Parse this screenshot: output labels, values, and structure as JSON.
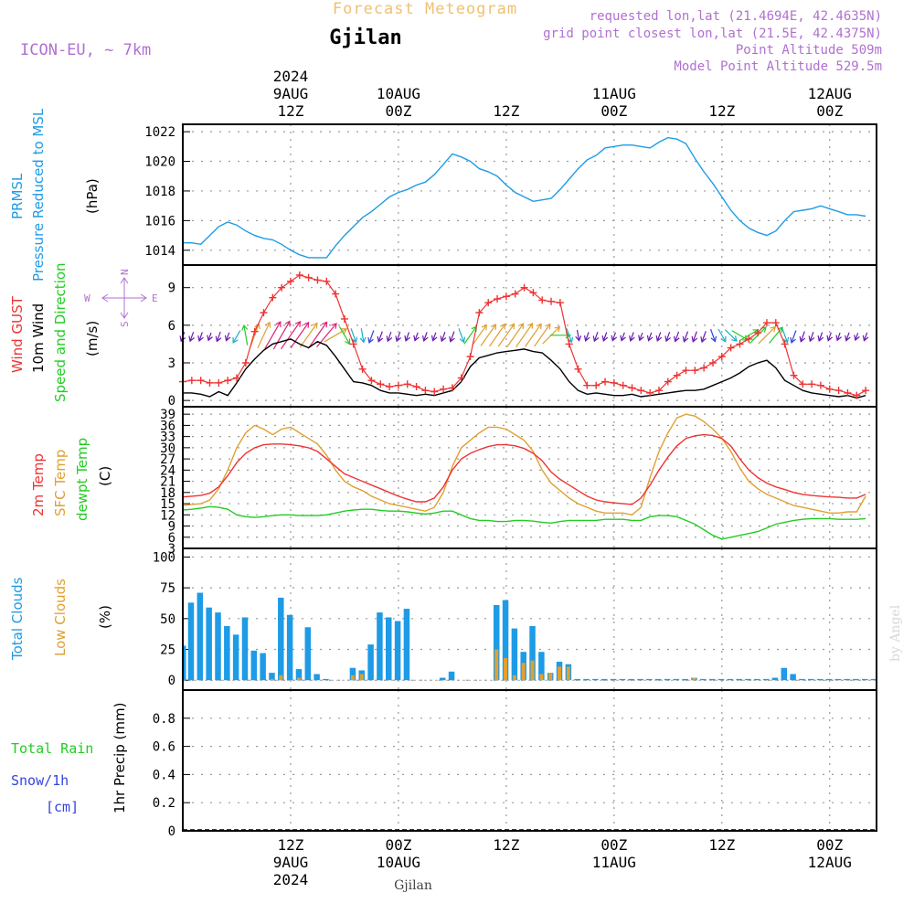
{
  "header": {
    "title": "Forecast Meteogram",
    "location": "Gjilan",
    "model": "ICON-EU, ~ 7km",
    "requested": "requested lon,lat (21.4694E, 42.4635N)",
    "grid_point": "grid point closest lon,lat (21.5E, 42.4375N)",
    "point_altitude": "Point Altitude 509m",
    "model_altitude": "Model Point Altitude 529.5m"
  },
  "top_axis": [
    {
      "h": 12,
      "lines": [
        "2024",
        "9AUG",
        "12Z"
      ]
    },
    {
      "h": 24,
      "lines": [
        "10AUG",
        "00Z"
      ]
    },
    {
      "h": 36,
      "lines": [
        "12Z"
      ]
    },
    {
      "h": 48,
      "lines": [
        "11AUG",
        "00Z"
      ]
    },
    {
      "h": 60,
      "lines": [
        "12Z"
      ]
    },
    {
      "h": 72,
      "lines": [
        "12AUG",
        "00Z"
      ]
    }
  ],
  "bottom_axis": [
    {
      "h": 12,
      "lines": [
        "12Z",
        "9AUG",
        "2024"
      ]
    },
    {
      "h": 24,
      "lines": [
        "00Z",
        "10AUG"
      ]
    },
    {
      "h": 36,
      "lines": [
        "12Z"
      ]
    },
    {
      "h": 48,
      "lines": [
        "00Z",
        "11AUG"
      ]
    },
    {
      "h": 60,
      "lines": [
        "12Z"
      ]
    },
    {
      "h": 72,
      "lines": [
        "00Z",
        "12AUG"
      ]
    }
  ],
  "footer_location": "Gjilan",
  "watermark": "by Angel",
  "labels": {
    "pressure_a": "PRMSL",
    "pressure_b": "Pressure Reduced to MSL",
    "pressure_unit": "(hPa)",
    "wind_gust": "Wind GUST",
    "wind_10m": "10m Wind",
    "wind_speed_dir": "Speed and Direction",
    "wind_unit": "(m/s)",
    "compass_n": "N",
    "compass_s": "S",
    "compass_w": "W",
    "compass_e": "E",
    "temp_2m": "2m Temp",
    "temp_sfc": "SFC Temp",
    "temp_dew": "dewpt Temp",
    "temp_unit": "(C)",
    "cloud_total": "Total Clouds",
    "cloud_low": "Low Clouds",
    "cloud_unit": "(%)",
    "rain_total": "Total  Rain",
    "rain_snow": "Snow/1h",
    "rain_cm": "[cm]",
    "rain_unit": "1hr Precip (mm)"
  },
  "colors": {
    "pressure": "#1e9be6",
    "gust": "#ee3333",
    "wind": "#000000",
    "t2m": "#ee3333",
    "sfc": "#e0a030",
    "dew": "#22cc22",
    "total_cloud": "#1e9be6",
    "low_cloud": "#e0a030",
    "rain": "#22cc22",
    "snow": "#3344dd",
    "header": "#b070d0",
    "title": "#f0c070"
  },
  "chart_data": [
    {
      "type": "line",
      "name": "pressure",
      "x_hours_from": "9AUG 00Z",
      "x": [
        0,
        1,
        2,
        3,
        4,
        5,
        6,
        7,
        8,
        9,
        10,
        11,
        12,
        13,
        14,
        15,
        16,
        17,
        18,
        19,
        20,
        21,
        22,
        23,
        24,
        25,
        26,
        27,
        28,
        29,
        30,
        31,
        32,
        33,
        34,
        35,
        36,
        37,
        38,
        39,
        40,
        41,
        42,
        43,
        44,
        45,
        46,
        47,
        48,
        49,
        50,
        51,
        52,
        53,
        54,
        55,
        56,
        57,
        58,
        59,
        60,
        61,
        62,
        63,
        64,
        65,
        66,
        67,
        68,
        69,
        70,
        71,
        72,
        73,
        74,
        75,
        76
      ],
      "values": [
        1014.5,
        1014.5,
        1014.4,
        1015.0,
        1015.6,
        1015.9,
        1015.7,
        1015.3,
        1015.0,
        1014.8,
        1014.7,
        1014.4,
        1014.0,
        1013.7,
        1013.5,
        1013.5,
        1013.5,
        1014.3,
        1015.0,
        1015.6,
        1016.2,
        1016.6,
        1017.1,
        1017.6,
        1017.9,
        1018.1,
        1018.4,
        1018.6,
        1019.1,
        1019.8,
        1020.5,
        1020.3,
        1020.0,
        1019.5,
        1019.3,
        1019.0,
        1018.4,
        1017.9,
        1017.6,
        1017.3,
        1017.4,
        1017.5,
        1018.1,
        1018.8,
        1019.5,
        1020.1,
        1020.4,
        1020.9,
        1021.0,
        1021.1,
        1021.1,
        1021.0,
        1020.9,
        1021.3,
        1021.6,
        1021.5,
        1021.2,
        1020.2,
        1019.3,
        1018.5,
        1017.6,
        1016.7,
        1016.0,
        1015.5,
        1015.2,
        1015.0,
        1015.3,
        1016.0,
        1016.6,
        1016.7,
        1016.8,
        1017.0,
        1016.8,
        1016.6,
        1016.4,
        1016.4,
        1016.3
      ],
      "ylim": [
        1013,
        1022.5
      ],
      "yticks": [
        1014,
        1016,
        1018,
        1020,
        1022
      ]
    },
    {
      "type": "line",
      "name": "wind",
      "x": [
        0,
        1,
        2,
        3,
        4,
        5,
        6,
        7,
        8,
        9,
        10,
        11,
        12,
        13,
        14,
        15,
        16,
        17,
        18,
        19,
        20,
        21,
        22,
        23,
        24,
        25,
        26,
        27,
        28,
        29,
        30,
        31,
        32,
        33,
        34,
        35,
        36,
        37,
        38,
        39,
        40,
        41,
        42,
        43,
        44,
        45,
        46,
        47,
        48,
        49,
        50,
        51,
        52,
        53,
        54,
        55,
        56,
        57,
        58,
        59,
        60,
        61,
        62,
        63,
        64,
        65,
        66,
        67,
        68,
        69,
        70,
        71,
        72,
        73,
        74,
        75,
        76
      ],
      "gust": [
        1.5,
        1.6,
        1.6,
        1.4,
        1.4,
        1.6,
        1.8,
        3.0,
        5.5,
        7.0,
        8.2,
        9.0,
        9.5,
        10.0,
        9.8,
        9.6,
        9.5,
        8.5,
        6.5,
        4.5,
        2.5,
        1.6,
        1.3,
        1.1,
        1.2,
        1.3,
        1.1,
        0.8,
        0.7,
        0.9,
        1.0,
        1.8,
        3.5,
        7.0,
        7.8,
        8.1,
        8.3,
        8.5,
        9.0,
        8.6,
        8.0,
        7.9,
        7.8,
        4.5,
        2.5,
        1.2,
        1.2,
        1.5,
        1.4,
        1.2,
        1.0,
        0.8,
        0.6,
        0.8,
        1.5,
        2.0,
        2.4,
        2.4,
        2.6,
        3.0,
        3.5,
        4.2,
        4.5,
        4.9,
        5.4,
        6.2,
        6.2,
        4.5,
        2.0,
        1.3,
        1.3,
        1.2,
        0.9,
        0.8,
        0.6,
        0.4,
        0.8
      ],
      "speed": [
        0.6,
        0.6,
        0.5,
        0.3,
        0.7,
        0.4,
        1.4,
        2.5,
        3.3,
        4.0,
        4.5,
        4.7,
        4.9,
        4.5,
        4.2,
        4.7,
        4.4,
        3.5,
        2.5,
        1.5,
        1.4,
        1.2,
        0.8,
        0.6,
        0.6,
        0.5,
        0.4,
        0.5,
        0.4,
        0.6,
        0.8,
        1.5,
        2.7,
        3.4,
        3.6,
        3.8,
        3.9,
        4.0,
        4.1,
        3.9,
        3.8,
        3.2,
        2.5,
        1.5,
        0.8,
        0.5,
        0.6,
        0.5,
        0.4,
        0.4,
        0.5,
        0.3,
        0.4,
        0.5,
        0.6,
        0.7,
        0.8,
        0.8,
        0.9,
        1.2,
        1.5,
        1.8,
        2.2,
        2.7,
        3.0,
        3.2,
        2.6,
        1.6,
        1.2,
        0.8,
        0.6,
        0.5,
        0.4,
        0.3,
        0.4,
        0.2,
        0.4
      ],
      "direction_deg": [
        20,
        20,
        20,
        20,
        20,
        20,
        30,
        170,
        200,
        205,
        210,
        210,
        215,
        215,
        215,
        215,
        220,
        240,
        330,
        340,
        350,
        20,
        20,
        20,
        20,
        20,
        20,
        20,
        20,
        20,
        20,
        340,
        215,
        215,
        215,
        215,
        215,
        215,
        215,
        215,
        215,
        225,
        270,
        340,
        350,
        20,
        20,
        20,
        20,
        20,
        20,
        20,
        20,
        20,
        20,
        20,
        20,
        20,
        20,
        340,
        330,
        315,
        300,
        240,
        225,
        225,
        220,
        340,
        20,
        20,
        20,
        20,
        20,
        20,
        20,
        20,
        20
      ],
      "ylim": [
        -0.5,
        10.8
      ],
      "yticks": [
        0,
        3,
        6,
        9
      ]
    },
    {
      "type": "line",
      "name": "temperature",
      "x": [
        0,
        1,
        2,
        3,
        4,
        5,
        6,
        7,
        8,
        9,
        10,
        11,
        12,
        13,
        14,
        15,
        16,
        17,
        18,
        19,
        20,
        21,
        22,
        23,
        24,
        25,
        26,
        27,
        28,
        29,
        30,
        31,
        32,
        33,
        34,
        35,
        36,
        37,
        38,
        39,
        40,
        41,
        42,
        43,
        44,
        45,
        46,
        47,
        48,
        49,
        50,
        51,
        52,
        53,
        54,
        55,
        56,
        57,
        58,
        59,
        60,
        61,
        62,
        63,
        64,
        65,
        66,
        67,
        68,
        69,
        70,
        71,
        72,
        73,
        74,
        75,
        76
      ],
      "t2m": [
        16.8,
        17.0,
        17.2,
        17.8,
        19.5,
        22.5,
        26.0,
        28.5,
        30.0,
        30.8,
        31.0,
        31.0,
        30.8,
        30.5,
        30.0,
        29.0,
        27.0,
        25.0,
        23.0,
        22.0,
        21.0,
        20.0,
        19.0,
        18.0,
        17.0,
        16.2,
        15.5,
        15.5,
        16.5,
        19.5,
        24.0,
        27.0,
        28.5,
        29.5,
        30.3,
        30.8,
        30.8,
        30.5,
        29.8,
        28.5,
        26.5,
        23.5,
        21.5,
        20.0,
        18.5,
        17.0,
        16.0,
        15.5,
        15.2,
        15.0,
        14.8,
        16.5,
        20.0,
        24.0,
        27.5,
        30.5,
        32.5,
        33.2,
        33.5,
        33.3,
        32.5,
        30.5,
        27.0,
        24.0,
        22.0,
        20.5,
        19.5,
        18.8,
        18.0,
        17.5,
        17.2,
        17.0,
        16.8,
        16.7,
        16.5,
        16.5,
        17.5
      ],
      "sfc": [
        14.5,
        14.8,
        15.0,
        16.0,
        19.0,
        24.0,
        30.0,
        34.0,
        36.0,
        35.0,
        33.5,
        35.0,
        35.5,
        34.0,
        32.5,
        31.0,
        28.0,
        24.0,
        21.0,
        19.5,
        18.5,
        17.0,
        16.0,
        15.0,
        14.5,
        14.0,
        13.5,
        13.0,
        14.0,
        18.0,
        25.0,
        30.0,
        32.0,
        34.0,
        35.5,
        35.5,
        35.0,
        33.5,
        32.0,
        29.0,
        24.0,
        20.5,
        18.5,
        16.5,
        15.0,
        14.0,
        13.0,
        12.5,
        12.5,
        12.5,
        12.0,
        14.0,
        22.0,
        29.0,
        34.0,
        38.0,
        39.0,
        38.5,
        37.0,
        35.0,
        32.5,
        29.0,
        24.5,
        21.0,
        19.0,
        17.5,
        16.5,
        15.5,
        14.5,
        14.0,
        13.5,
        13.0,
        12.5,
        12.5,
        12.8,
        12.8,
        17.0
      ],
      "dew": [
        13.3,
        13.5,
        13.8,
        14.2,
        14.0,
        13.5,
        12.0,
        11.5,
        11.3,
        11.5,
        11.8,
        12.0,
        12.0,
        11.8,
        11.8,
        11.8,
        12.0,
        12.5,
        13.0,
        13.3,
        13.5,
        13.5,
        13.2,
        13.0,
        13.0,
        12.8,
        12.5,
        12.2,
        12.5,
        13.0,
        13.0,
        12.0,
        11.0,
        10.5,
        10.5,
        10.2,
        10.2,
        10.5,
        10.5,
        10.3,
        10.0,
        9.8,
        10.2,
        10.5,
        10.5,
        10.5,
        10.5,
        10.8,
        10.8,
        10.8,
        10.5,
        10.5,
        11.5,
        11.8,
        11.8,
        11.5,
        10.5,
        9.5,
        8.0,
        6.5,
        5.5,
        6.0,
        6.5,
        7.0,
        7.5,
        8.5,
        9.5,
        10.0,
        10.5,
        10.8,
        11.0,
        11.0,
        11.0,
        10.8,
        10.8,
        10.8,
        11.0
      ],
      "ylim": [
        3,
        41
      ],
      "yticks": [
        3,
        6,
        9,
        12,
        15,
        18,
        21,
        24,
        27,
        30,
        33,
        36,
        39
      ]
    },
    {
      "type": "bar",
      "name": "clouds",
      "x": [
        0,
        1,
        2,
        3,
        4,
        5,
        6,
        7,
        8,
        9,
        10,
        11,
        12,
        13,
        14,
        15,
        16,
        17,
        18,
        19,
        20,
        21,
        22,
        23,
        24,
        25,
        26,
        27,
        28,
        29,
        30,
        31,
        32,
        33,
        34,
        35,
        36,
        37,
        38,
        39,
        40,
        41,
        42,
        43,
        44,
        45,
        46,
        47,
        48,
        49,
        50,
        51,
        52,
        53,
        54,
        55,
        56,
        57,
        58,
        59,
        60,
        61,
        62,
        63,
        64,
        65,
        66,
        67,
        68,
        69,
        70,
        71,
        72,
        73,
        74,
        75,
        76
      ],
      "total": [
        63,
        71,
        59,
        55,
        44,
        37,
        51,
        24,
        22,
        6,
        67,
        53,
        9,
        43,
        5,
        1,
        0,
        0,
        10,
        8,
        29,
        55,
        51,
        48,
        58,
        0,
        0,
        0,
        2,
        7,
        0,
        0,
        0,
        0,
        61,
        65,
        42,
        23,
        44,
        23,
        6,
        15,
        13,
        1,
        1,
        1,
        1,
        1,
        1,
        1,
        1,
        1,
        1,
        1,
        1,
        1,
        2,
        1,
        1,
        1,
        1,
        1,
        1,
        1,
        1,
        2,
        10,
        5,
        1,
        1,
        1,
        1,
        1,
        1,
        1,
        1,
        1
      ],
      "low": [
        0,
        0,
        0,
        0,
        0,
        0,
        0,
        0,
        0,
        1,
        4,
        0,
        2,
        0,
        0,
        0,
        0,
        0,
        4,
        5,
        0,
        0,
        0,
        0,
        0,
        0,
        0,
        0,
        0,
        0,
        0,
        0,
        0,
        0,
        25,
        18,
        4,
        14,
        16,
        5,
        6,
        11,
        11,
        0,
        0,
        0,
        0,
        0,
        0,
        0,
        0,
        0,
        0,
        0,
        0,
        0,
        2,
        0,
        0,
        0,
        0,
        0,
        0,
        0,
        0,
        0,
        0,
        0,
        0,
        0,
        0,
        0,
        0,
        0,
        0,
        0,
        0
      ],
      "leading_partial_total": 28,
      "ylim": [
        -8,
        107
      ],
      "yticks": [
        0,
        25,
        50,
        75,
        100
      ]
    },
    {
      "type": "bar",
      "name": "precipitation",
      "x": [
        0,
        1,
        2,
        3,
        4,
        5,
        6,
        7,
        8,
        9,
        10,
        11,
        12,
        13,
        14,
        15,
        16,
        17,
        18,
        19,
        20,
        21,
        22,
        23,
        24,
        25,
        26,
        27,
        28,
        29,
        30,
        31,
        32,
        33,
        34,
        35,
        36,
        37,
        38,
        39,
        40,
        41,
        42,
        43,
        44,
        45,
        46,
        47,
        48,
        49,
        50,
        51,
        52,
        53,
        54,
        55,
        56,
        57,
        58,
        59,
        60,
        61,
        62,
        63,
        64,
        65,
        66,
        67,
        68,
        69,
        70,
        71,
        72,
        73,
        74,
        75,
        76
      ],
      "rain": [
        0,
        0,
        0,
        0,
        0,
        0,
        0,
        0,
        0,
        0,
        0,
        0,
        0,
        0,
        0,
        0,
        0,
        0,
        0,
        0,
        0,
        0,
        0,
        0,
        0,
        0,
        0,
        0,
        0,
        0,
        0,
        0,
        0,
        0,
        0,
        0,
        0,
        0,
        0,
        0,
        0,
        0,
        0,
        0,
        0,
        0,
        0,
        0,
        0,
        0,
        0,
        0,
        0,
        0,
        0,
        0,
        0,
        0,
        0,
        0,
        0,
        0,
        0,
        0,
        0,
        0,
        0,
        0,
        0,
        0,
        0,
        0,
        0,
        0,
        0,
        0,
        0
      ],
      "ylim": [
        0,
        1.0
      ],
      "yticks": [
        0,
        0.2,
        0.4,
        0.6,
        0.8
      ],
      "ytick_labels": [
        "0",
        "0.2",
        "0.4",
        "0.6",
        "0.8"
      ]
    }
  ]
}
